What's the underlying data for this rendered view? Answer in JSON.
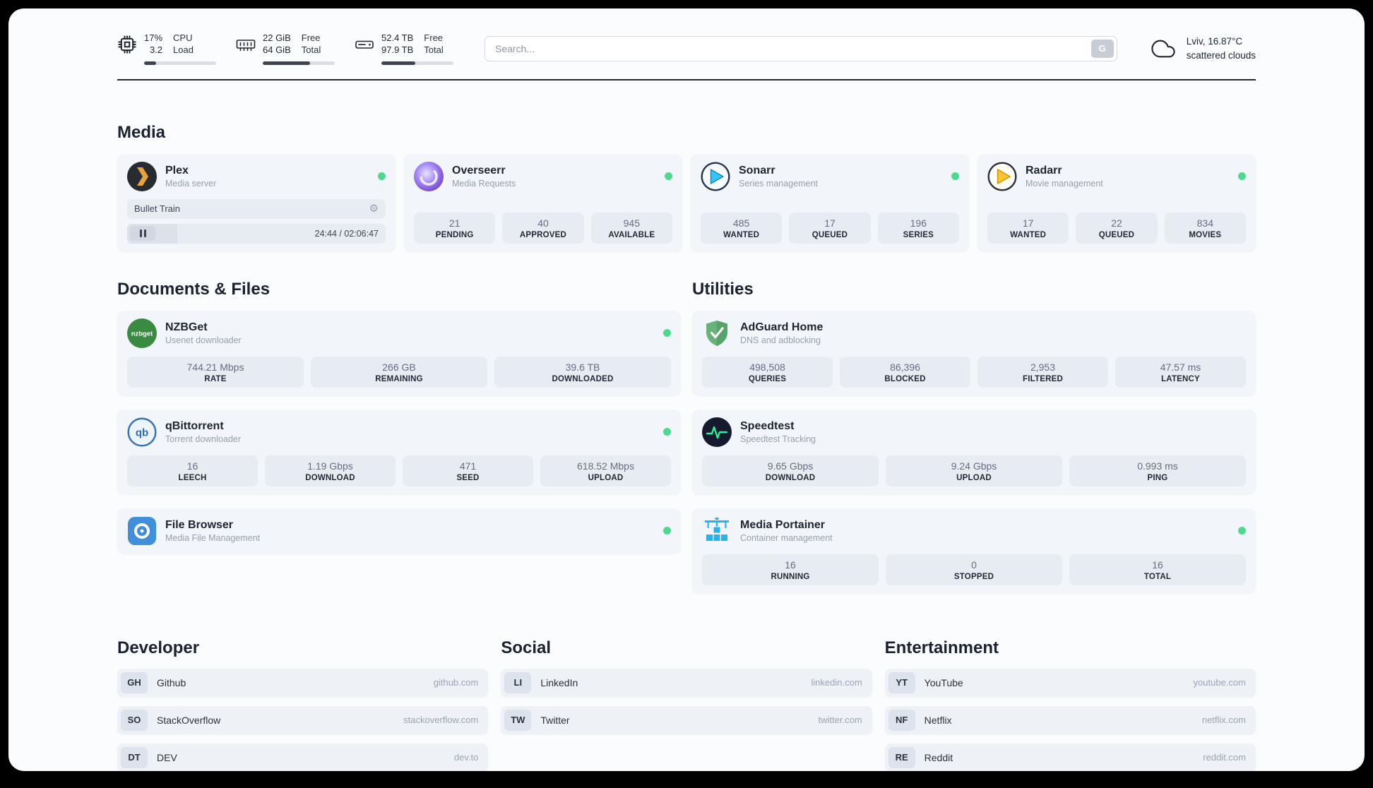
{
  "header": {
    "cpu": {
      "value1": "17%",
      "value2": "3.2",
      "label1": "CPU",
      "label2": "Load",
      "progress": 17
    },
    "memory": {
      "value1": "22 GiB",
      "value2": "64 GiB",
      "label1": "Free",
      "label2": "Total",
      "progress": 66
    },
    "storage": {
      "value1": "52.4 TB",
      "value2": "97.9 TB",
      "label1": "Free",
      "label2": "Total",
      "progress": 47
    },
    "search": {
      "placeholder": "Search...",
      "button_label": "G"
    },
    "weather": {
      "location": "Lviv, 16.87°C",
      "condition": "scattered clouds"
    }
  },
  "sections": {
    "media": {
      "title": "Media",
      "plex": {
        "name": "Plex",
        "subtitle": "Media server",
        "track": "Bullet Train",
        "time": "24:44 / 02:06:47",
        "progress": 19.5
      },
      "overseerr": {
        "name": "Overseerr",
        "subtitle": "Media Requests",
        "stats": [
          {
            "value": "21",
            "label": "PENDING"
          },
          {
            "value": "40",
            "label": "APPROVED"
          },
          {
            "value": "945",
            "label": "AVAILABLE"
          }
        ]
      },
      "sonarr": {
        "name": "Sonarr",
        "subtitle": "Series management",
        "stats": [
          {
            "value": "485",
            "label": "WANTED"
          },
          {
            "value": "17",
            "label": "QUEUED"
          },
          {
            "value": "196",
            "label": "SERIES"
          }
        ]
      },
      "radarr": {
        "name": "Radarr",
        "subtitle": "Movie management",
        "stats": [
          {
            "value": "17",
            "label": "WANTED"
          },
          {
            "value": "22",
            "label": "QUEUED"
          },
          {
            "value": "834",
            "label": "MOVIES"
          }
        ]
      }
    },
    "documents": {
      "title": "Documents & Files",
      "nzbget": {
        "name": "NZBGet",
        "subtitle": "Usenet downloader",
        "stats": [
          {
            "value": "744.21 Mbps",
            "label": "RATE"
          },
          {
            "value": "266 GB",
            "label": "REMAINING"
          },
          {
            "value": "39.6 TB",
            "label": "DOWNLOADED"
          }
        ]
      },
      "qbittorrent": {
        "name": "qBittorrent",
        "subtitle": "Torrent downloader",
        "stats": [
          {
            "value": "16",
            "label": "LEECH"
          },
          {
            "value": "1.19 Gbps",
            "label": "DOWNLOAD"
          },
          {
            "value": "471",
            "label": "SEED"
          },
          {
            "value": "618.52 Mbps",
            "label": "UPLOAD"
          }
        ]
      },
      "filebrowser": {
        "name": "File Browser",
        "subtitle": "Media File Management"
      }
    },
    "utilities": {
      "title": "Utilities",
      "adguard": {
        "name": "AdGuard Home",
        "subtitle": "DNS and adblocking",
        "stats": [
          {
            "value": "498,508",
            "label": "QUERIES"
          },
          {
            "value": "86,396",
            "label": "BLOCKED"
          },
          {
            "value": "2,953",
            "label": "FILTERED"
          },
          {
            "value": "47.57 ms",
            "label": "LATENCY"
          }
        ]
      },
      "speedtest": {
        "name": "Speedtest",
        "subtitle": "Speedtest Tracking",
        "stats": [
          {
            "value": "9.65 Gbps",
            "label": "DOWNLOAD"
          },
          {
            "value": "9.24 Gbps",
            "label": "UPLOAD"
          },
          {
            "value": "0.993 ms",
            "label": "PING"
          }
        ]
      },
      "portainer": {
        "name": "Media Portainer",
        "subtitle": "Container management",
        "stats": [
          {
            "value": "16",
            "label": "RUNNING"
          },
          {
            "value": "0",
            "label": "STOPPED"
          },
          {
            "value": "16",
            "label": "TOTAL"
          }
        ]
      }
    },
    "developer": {
      "title": "Developer",
      "links": [
        {
          "badge": "GH",
          "name": "Github",
          "url": "github.com"
        },
        {
          "badge": "SO",
          "name": "StackOverflow",
          "url": "stackoverflow.com"
        },
        {
          "badge": "DT",
          "name": "DEV",
          "url": "dev.to"
        }
      ]
    },
    "social": {
      "title": "Social",
      "links": [
        {
          "badge": "LI",
          "name": "LinkedIn",
          "url": "linkedin.com"
        },
        {
          "badge": "TW",
          "name": "Twitter",
          "url": "twitter.com"
        }
      ]
    },
    "entertainment": {
      "title": "Entertainment",
      "links": [
        {
          "badge": "YT",
          "name": "YouTube",
          "url": "youtube.com"
        },
        {
          "badge": "NF",
          "name": "Netflix",
          "url": "netflix.com"
        },
        {
          "badge": "RE",
          "name": "Reddit",
          "url": "reddit.com"
        }
      ]
    }
  },
  "colors": {
    "status_green": "#4ed98c",
    "accent_dark": "#3d4450"
  }
}
